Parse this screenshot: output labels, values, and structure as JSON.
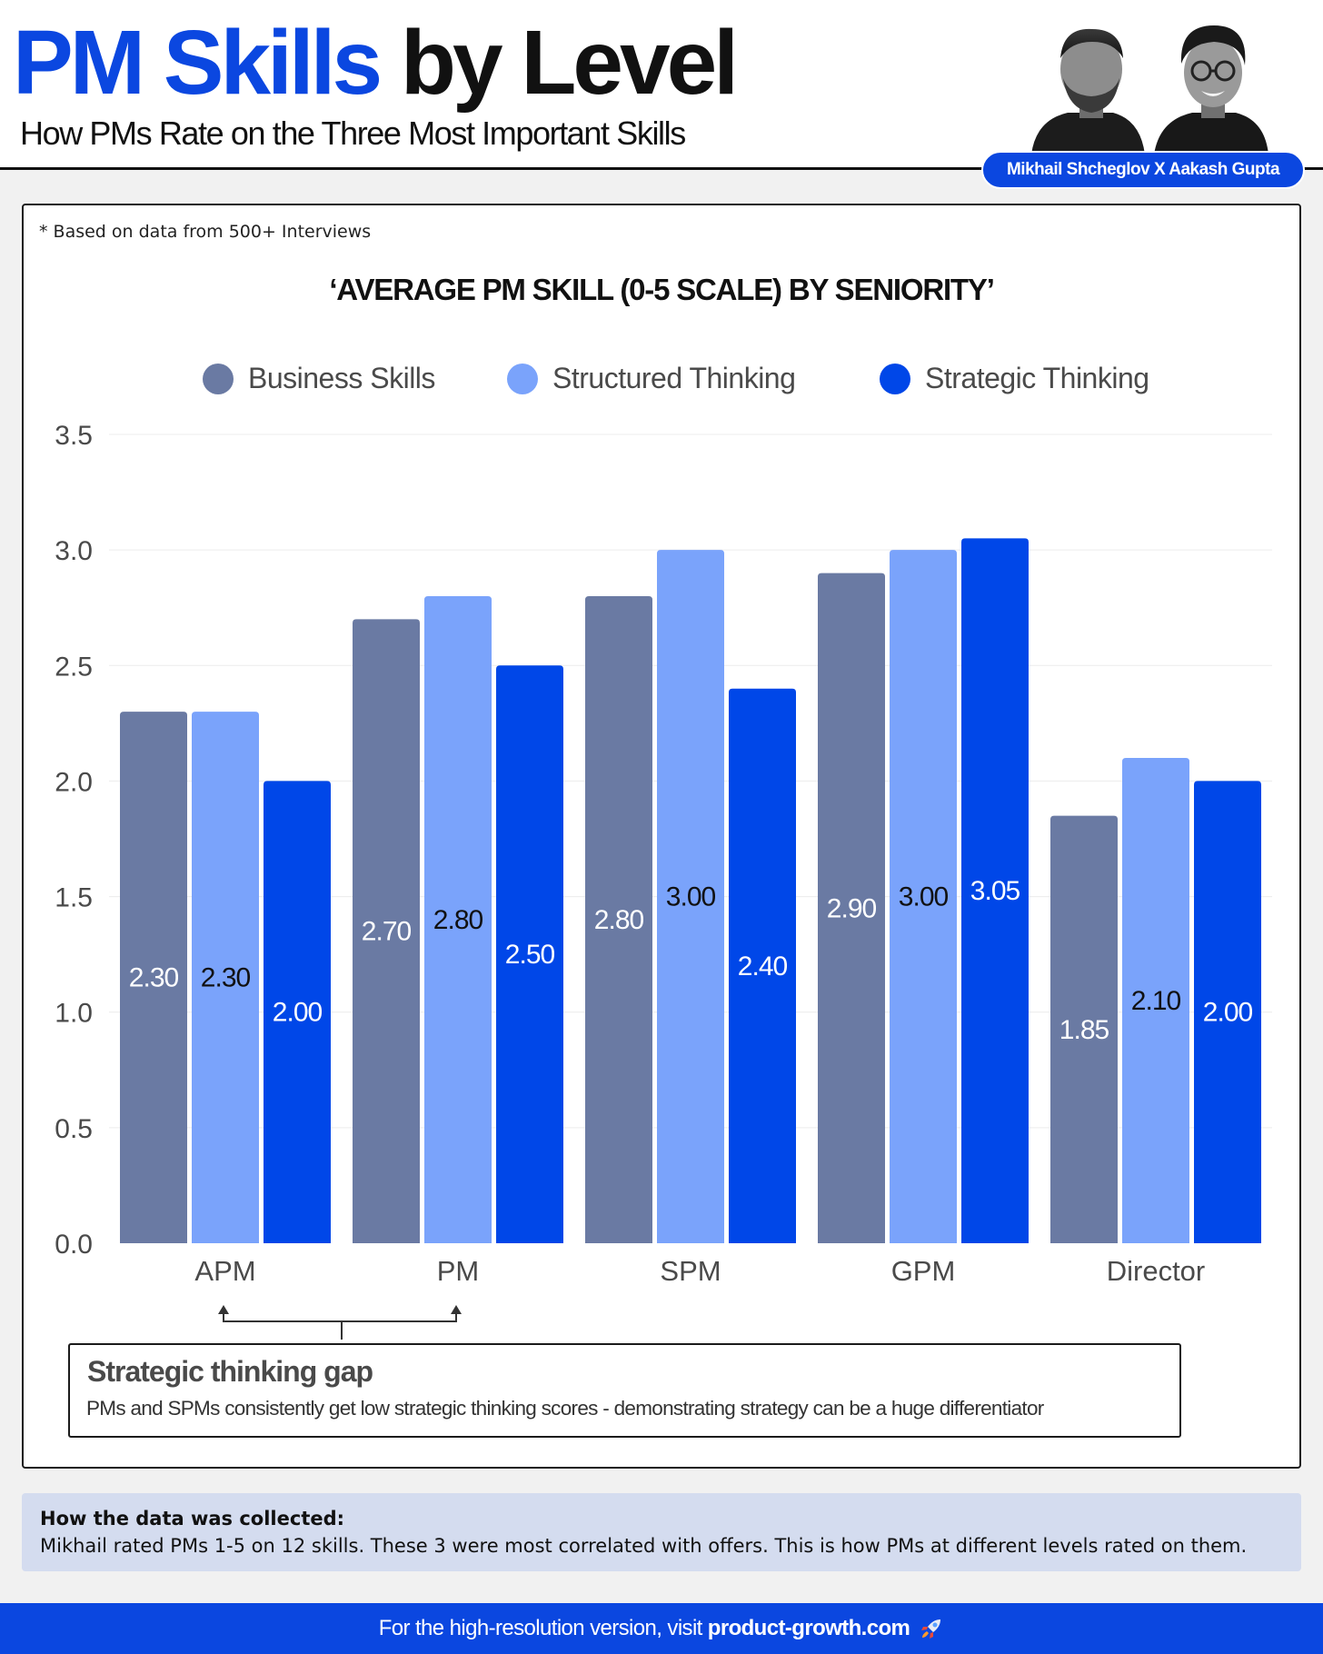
{
  "header": {
    "title_blue": "PM Skills",
    "title_black": "by Level",
    "subtitle": "How PMs Rate on the Three Most Important Skills",
    "authors": "Mikhail Shcheglov X Aakash Gupta"
  },
  "card": {
    "note": "* Based on data from 500+ Interviews"
  },
  "chart_data": {
    "type": "bar",
    "title": "‘AVERAGE PM SKILL (0-5 SCALE) BY SENIORITY’",
    "xlabel": "",
    "ylabel": "",
    "categories": [
      "APM",
      "PM",
      "SPM",
      "GPM",
      "Director"
    ],
    "series": [
      {
        "name": "Business Skills",
        "color": "#6a7aa3",
        "labelColor": "#ffffff",
        "values": [
          2.3,
          2.7,
          2.8,
          2.9,
          1.85
        ],
        "labels": [
          "2.30",
          "2.70",
          "2.80",
          "2.90",
          "1.85"
        ]
      },
      {
        "name": "Structured Thinking",
        "color": "#7aa3fb",
        "labelColor": "#111111",
        "values": [
          2.3,
          2.8,
          3.0,
          3.0,
          2.1
        ],
        "labels": [
          "2.30",
          "2.80",
          "3.00",
          "3.00",
          "2.10"
        ]
      },
      {
        "name": "Strategic Thinking",
        "color": "#0047e8",
        "labelColor": "#ffffff",
        "values": [
          2.0,
          2.5,
          2.4,
          3.05,
          2.0
        ],
        "labels": [
          "2.00",
          "2.50",
          "2.40",
          "3.05",
          "2.00"
        ]
      }
    ],
    "yticks": [
      "0.0",
      "0.5",
      "1.0",
      "1.5",
      "2.0",
      "2.5",
      "3.0",
      "3.5"
    ],
    "ylim": [
      0,
      3.5
    ],
    "grid": true,
    "legend_position": "top-center",
    "annotation": {
      "from_category": "APM",
      "to_category": "PM",
      "title": "Strategic thinking gap",
      "body": "PMs and SPMs consistently get low strategic thinking scores - demonstrating strategy can be a huge differentiator"
    }
  },
  "collection": {
    "title": "How the data was collected:",
    "body": "Mikhail rated PMs 1-5 on 12 skills. These 3 were most correlated with offers. This is how PMs at different levels rated on them."
  },
  "footer": {
    "prefix": "For the high-resolution version, visit",
    "link": "product-growth.com",
    "icon": "rocket-icon"
  }
}
